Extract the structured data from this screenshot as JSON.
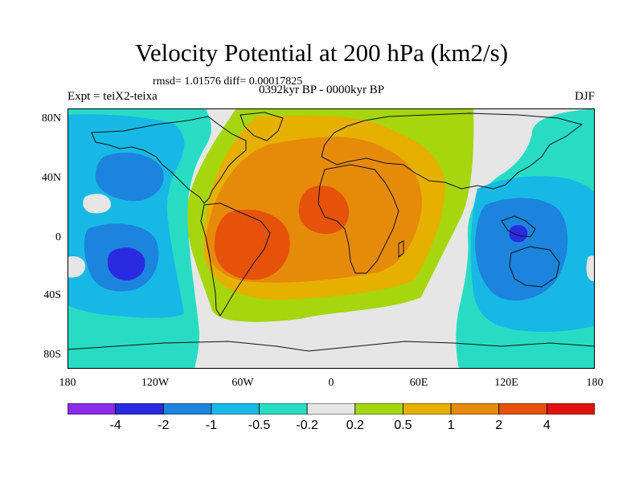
{
  "title": "Velocity Potential at 200 hPa (km2/s)",
  "subtitle": {
    "stats": "rmsd= 1.01576 diff= 0.00017825",
    "experiment": "Expt = teiX2-teixa",
    "period": "0392kyr BP - 0000kyr BP",
    "season": "DJF"
  },
  "axes": {
    "lat_ticks": [
      "80N",
      "40N",
      "0",
      "40S",
      "80S"
    ],
    "lon_ticks": [
      "180",
      "120W",
      "60W",
      "0",
      "60E",
      "120E",
      "180"
    ]
  },
  "colorbar": {
    "colors": [
      "#8b2ce8",
      "#2a2ae0",
      "#1c84dc",
      "#17b8e6",
      "#28dcc4",
      "#e6e6e6",
      "#a6d60e",
      "#e6b000",
      "#e68a0a",
      "#e6520a",
      "#e01010"
    ],
    "labels": [
      "-4",
      "-2",
      "-1",
      "-0.5",
      "-0.2",
      "0.2",
      "0.5",
      "1",
      "2",
      "4"
    ]
  },
  "field_colors": {
    "neutral": "#e6e6e6",
    "neg1": "#28dcc4",
    "neg2": "#17b8e6",
    "neg3": "#1c84dc",
    "neg4": "#2a2ae0",
    "neg5": "#8b2ce8",
    "pos1": "#a6d60e",
    "pos2": "#e6b000",
    "pos3": "#e68a0a",
    "pos4": "#e6520a",
    "coast": "#111111"
  }
}
